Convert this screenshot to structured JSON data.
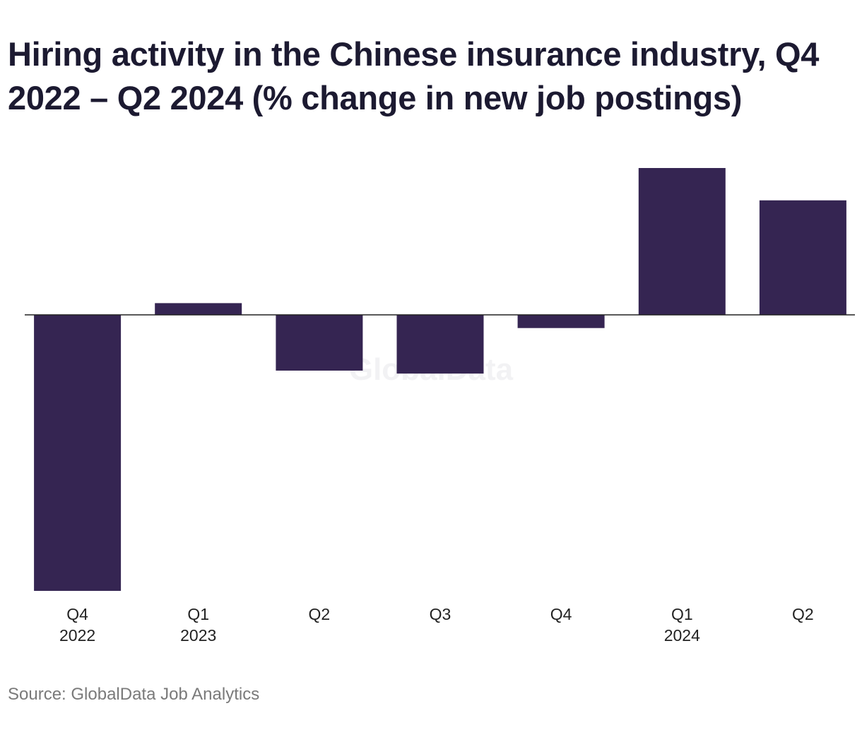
{
  "chart_data": {
    "type": "bar",
    "title": "Hiring activity in the Chinese insurance industry, Q4 2022 – Q2 2024 (% change in new job postings)",
    "categories": [
      [
        "Q4",
        "2022"
      ],
      [
        "Q1",
        "2023"
      ],
      [
        "Q2",
        ""
      ],
      [
        "Q3",
        ""
      ],
      [
        "Q4",
        ""
      ],
      [
        "Q1",
        "2024"
      ],
      [
        "Q2",
        ""
      ]
    ],
    "values": [
      -94,
      4,
      -19,
      -20,
      -4.5,
      50,
      39
    ],
    "ylim": [
      -94,
      50
    ],
    "grid": false,
    "legend": "none",
    "bar_color": "#352552",
    "axis_color": "#222222"
  },
  "watermark": "GlobalData",
  "source": "Source: GlobalData Job Analytics"
}
